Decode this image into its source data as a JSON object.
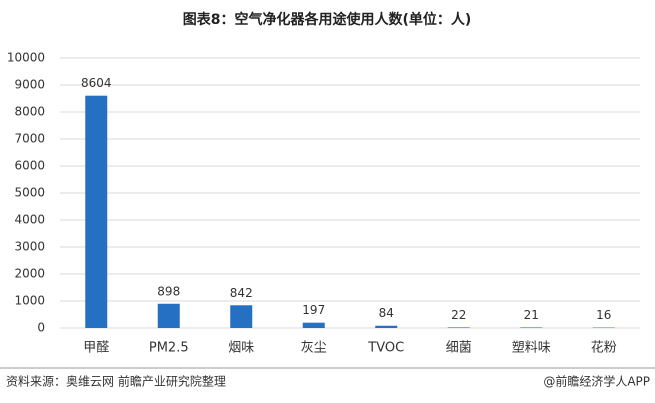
{
  "chart_data": {
    "type": "bar",
    "title": "图表8：空气净化器各用途使用人数(单位：人)",
    "categories": [
      "甲醛",
      "PM2.5",
      "烟味",
      "灰尘",
      "TVOC",
      "细菌",
      "塑料味",
      "花粉"
    ],
    "values": [
      8604,
      898,
      842,
      197,
      84,
      22,
      21,
      16
    ],
    "color": "#2670c4",
    "ylim": [
      0,
      10000
    ],
    "yticks": [
      0,
      1000,
      2000,
      3000,
      4000,
      5000,
      6000,
      7000,
      8000,
      9000,
      10000
    ],
    "grid": true
  },
  "footer": {
    "source": "资料来源：奥维云网 前瞻产业研究院整理",
    "credit": "@前瞻经济学人APP"
  }
}
